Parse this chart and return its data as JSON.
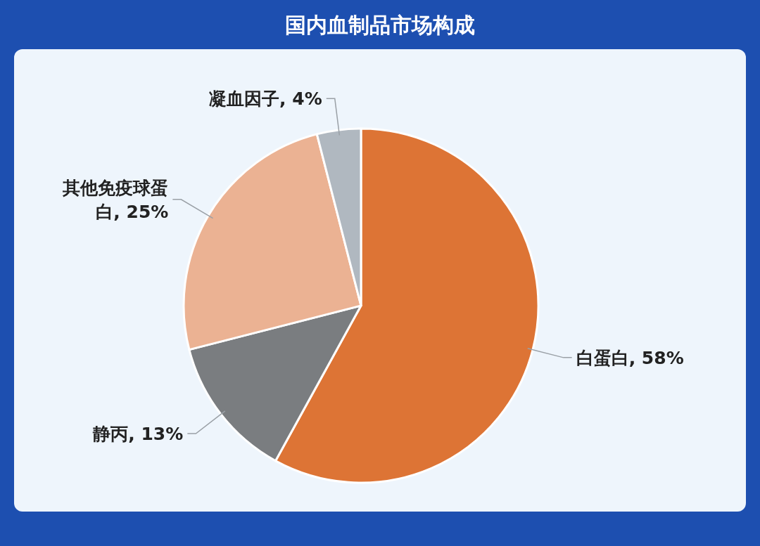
{
  "chart_data": {
    "type": "pie",
    "title": "国内血制品市场构成",
    "categories": [
      "白蛋白",
      "静丙",
      "其他免疫球蛋白",
      "凝血因子"
    ],
    "values": [
      58,
      13,
      25,
      4
    ],
    "value_labels": [
      "58%",
      "13%",
      "25%",
      "4%"
    ],
    "colors": [
      "#dd7435",
      "#7a7d80",
      "#ebb293",
      "#b0b8c0"
    ],
    "legend": false
  }
}
